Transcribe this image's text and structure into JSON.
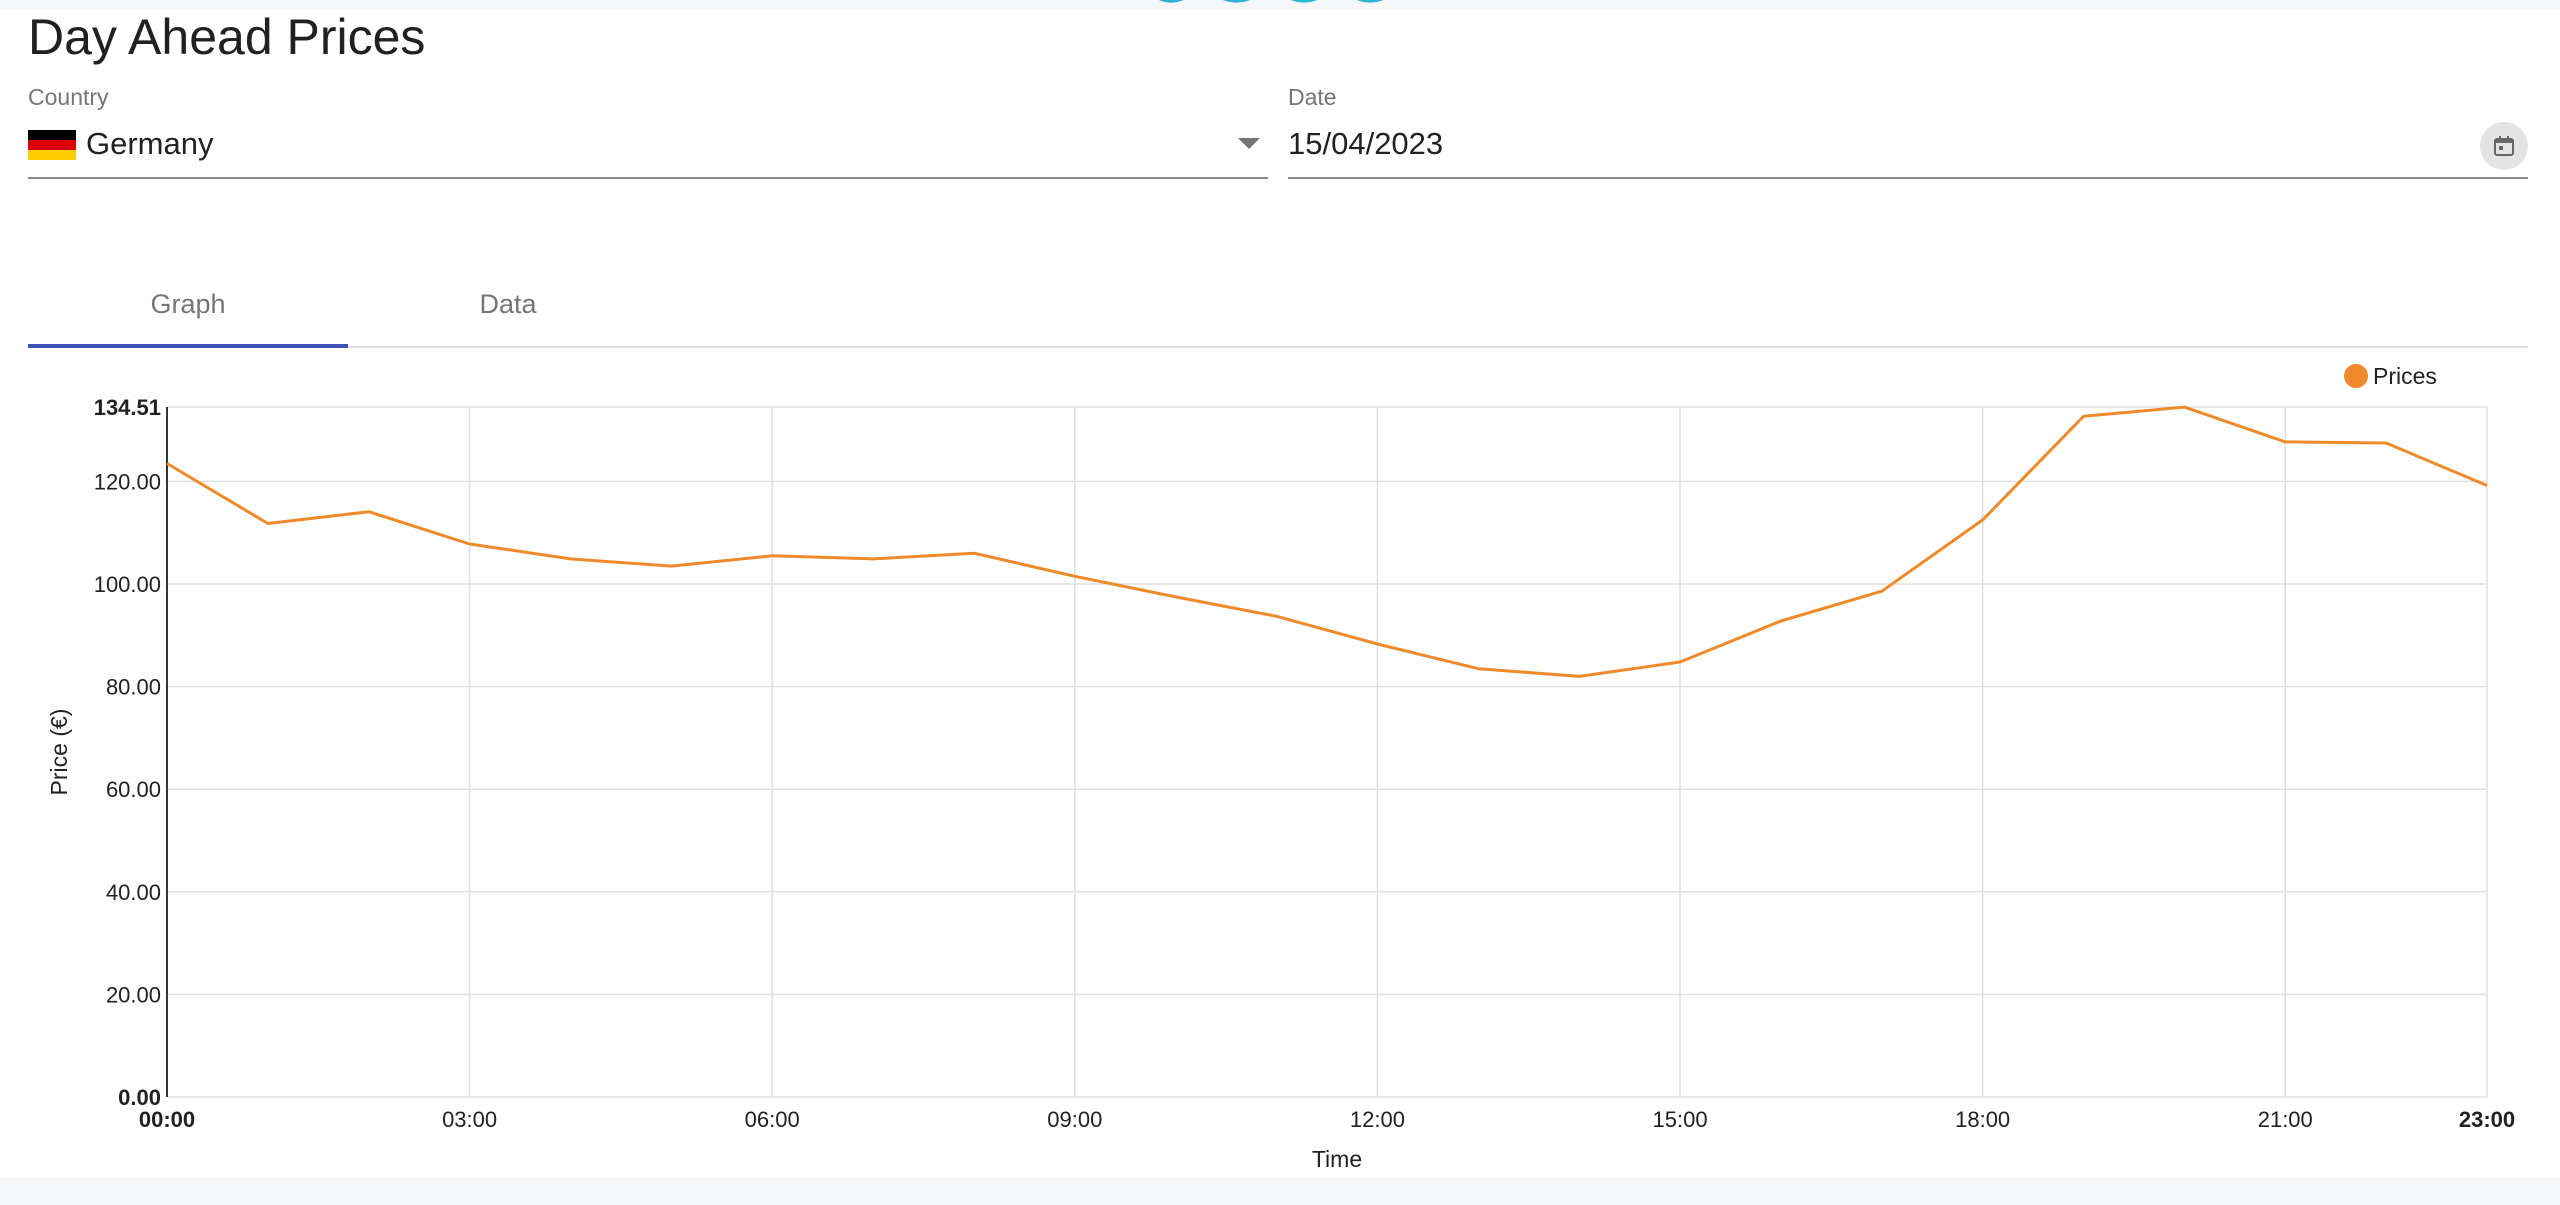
{
  "page": {
    "title": "Day Ahead Prices"
  },
  "filters": {
    "country_label": "Country",
    "country_value": "Germany",
    "country_flag_colors": [
      "#000000",
      "#dd0000",
      "#ffce00"
    ],
    "date_label": "Date",
    "date_value": "15/04/2023"
  },
  "tabs": [
    {
      "label": "Graph",
      "active": true
    },
    {
      "label": "Data",
      "active": false
    }
  ],
  "colors": {
    "accent": "#3f51b5",
    "series": "#ee8a2a",
    "logo": "#2eb3d6"
  },
  "chart_data": {
    "type": "line",
    "xlabel": "Time",
    "ylabel": "Price (€)",
    "ylim": [
      0,
      134.51
    ],
    "y_ticks": [
      "0.00",
      "20.00",
      "40.00",
      "60.00",
      "80.00",
      "100.00",
      "120.00",
      "134.51"
    ],
    "x_ticks": [
      "00:00",
      "03:00",
      "06:00",
      "09:00",
      "12:00",
      "15:00",
      "18:00",
      "21:00",
      "23:00"
    ],
    "legend_position": "top-right",
    "grid": true,
    "series": [
      {
        "name": "Prices",
        "x": [
          "00:00",
          "01:00",
          "02:00",
          "03:00",
          "04:00",
          "05:00",
          "06:00",
          "07:00",
          "08:00",
          "09:00",
          "10:00",
          "11:00",
          "12:00",
          "13:00",
          "14:00",
          "15:00",
          "16:00",
          "17:00",
          "18:00",
          "19:00",
          "20:00",
          "21:00",
          "22:00",
          "23:00"
        ],
        "values": [
          123.5,
          111.8,
          114.1,
          107.8,
          104.9,
          103.5,
          105.5,
          104.9,
          106.0,
          101.5,
          97.5,
          93.7,
          88.3,
          83.5,
          82.0,
          84.8,
          92.8,
          98.6,
          112.5,
          132.7,
          134.5,
          127.7,
          127.5,
          119.2
        ]
      }
    ]
  }
}
